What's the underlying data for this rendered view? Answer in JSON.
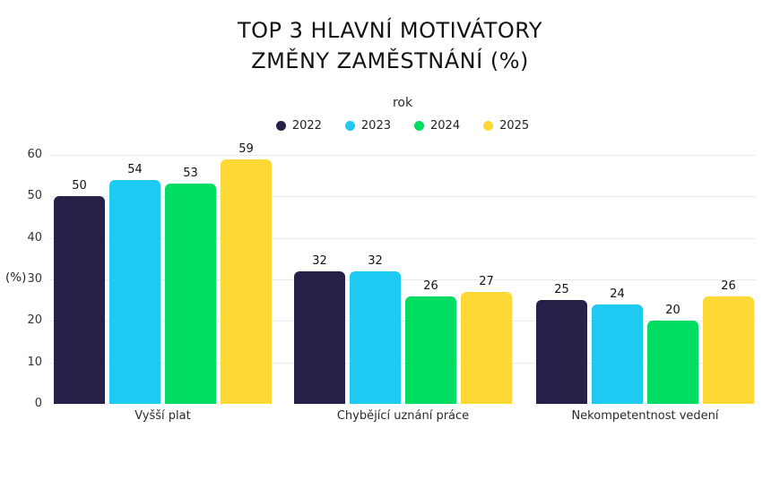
{
  "title": {
    "line1": "TOP 3 HLAVNÍ MOTIVÁTORY",
    "line2": "ZMĚNY ZAMĚSTNÁNÍ (%)"
  },
  "chart_data": {
    "type": "bar",
    "title": "TOP 3 HLAVNÍ MOTIVÁTORY ZMĚNY ZAMĚSTNÁNÍ (%)",
    "categories": [
      "Vyšší plat",
      "Chybějící uznání práce",
      "Nekompetentnost vedení"
    ],
    "series": [
      {
        "name": "2022",
        "color": "#262148",
        "values": [
          50,
          32,
          25
        ]
      },
      {
        "name": "2023",
        "color": "#1ec9f2",
        "values": [
          54,
          32,
          24
        ]
      },
      {
        "name": "2024",
        "color": "#00dd62",
        "values": [
          53,
          26,
          20
        ]
      },
      {
        "name": "2025",
        "color": "#fed835",
        "values": [
          59,
          27,
          26
        ]
      }
    ],
    "xlabel": "",
    "ylabel": "(%)",
    "ylim": [
      0,
      60
    ],
    "yticks": [
      0,
      10,
      20,
      30,
      40,
      50,
      60
    ],
    "legend_title": "rok",
    "legend_position": "top",
    "grid": true,
    "bar_value_labels": true,
    "gridline_color": "#eaeaea"
  }
}
